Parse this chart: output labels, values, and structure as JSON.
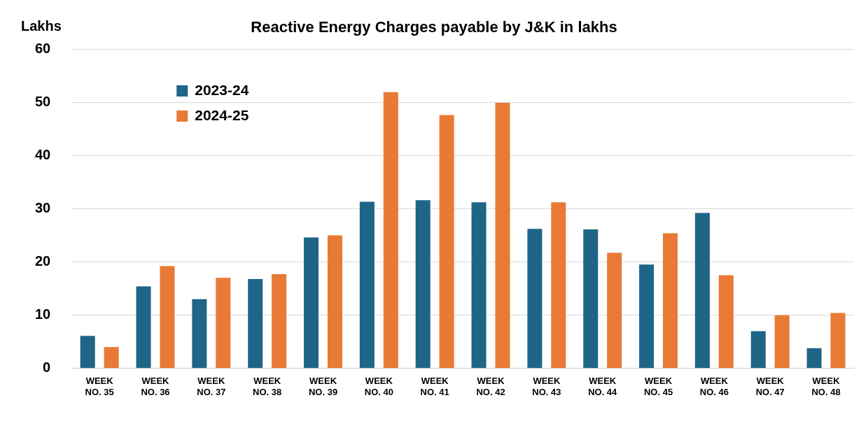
{
  "chart_data": {
    "type": "bar",
    "title": "Reactive Energy Charges payable by J&K in lakhs",
    "ylabel": "Lakhs",
    "categories": [
      "WEEK NO. 35",
      "WEEK NO. 36",
      "WEEK NO. 37",
      "WEEK NO. 38",
      "WEEK NO. 39",
      "WEEK NO. 40",
      "WEEK NO. 41",
      "WEEK NO. 42",
      "WEEK NO. 43",
      "WEEK NO. 44",
      "WEEK NO. 45",
      "WEEK NO. 46",
      "WEEK NO. 47",
      "WEEK NO. 48"
    ],
    "series": [
      {
        "name": "2023-24",
        "color": "#1f6587",
        "values": [
          6.1,
          15.4,
          13.0,
          16.8,
          24.6,
          31.3,
          31.6,
          31.2,
          26.2,
          26.1,
          19.5,
          29.2,
          7.0,
          3.8
        ]
      },
      {
        "name": "2024-25",
        "color": "#e97a35",
        "values": [
          4.0,
          19.2,
          17.0,
          17.7,
          25.0,
          51.9,
          47.6,
          49.9,
          31.2,
          21.7,
          25.4,
          17.5,
          10.0,
          10.4
        ]
      }
    ],
    "ylim": [
      0,
      60
    ],
    "yticks": [
      0,
      10,
      20,
      30,
      40,
      50,
      60
    ],
    "grid": "y",
    "legend": "top left"
  }
}
